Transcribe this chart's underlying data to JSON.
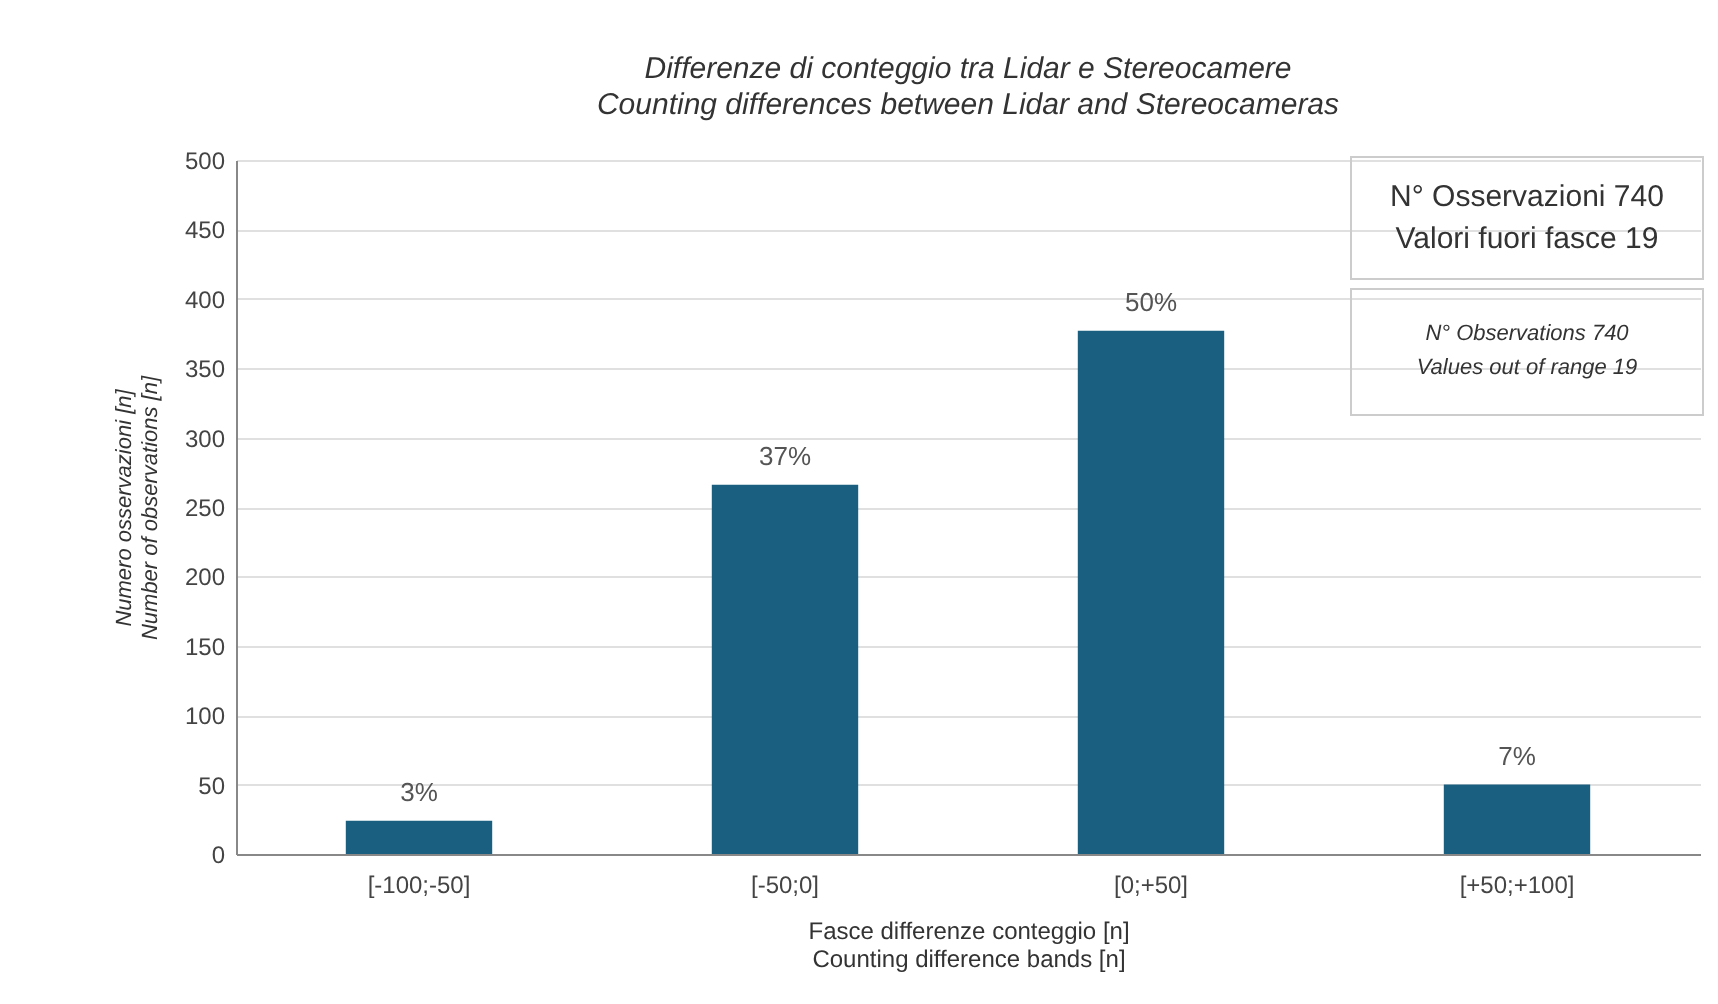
{
  "chart_data": {
    "type": "bar",
    "title": "Differenze di conteggio tra Lidar e Stereocamere",
    "subtitle": "Counting differences between Lidar and Stereocameras",
    "xlabel": "Fasce differenze conteggio [n]\nCounting difference bands [n]",
    "ylabel": "Numero osservazioni [n]\nNumber of observations [n]",
    "categories": [
      "[-100;-50]",
      "[-50;0]",
      "[0;+50]",
      "[+50;+100]"
    ],
    "values": [
      24,
      266,
      377,
      50
    ],
    "color": "#1a5f80",
    "ylim": [
      0,
      500
    ],
    "yticks": [
      0,
      50,
      100,
      150,
      200,
      250,
      300,
      350,
      400,
      450,
      500
    ],
    "grid": "y",
    "annotations": [
      "N° Osservazioni 740",
      "Valori fuori fasce 19",
      "N° Observations 740",
      "Values out of range 19",
      {
        "text": "3%",
        "x": "[-100;-50]",
        "y": 24
      },
      {
        "text": "37%",
        "x": "[-50;0]",
        "y": 266
      },
      {
        "text": "50%",
        "x": "[0;+50]",
        "y": 377
      },
      {
        "text": "7%",
        "x": "[+50;+100]",
        "y": 50
      }
    ]
  }
}
